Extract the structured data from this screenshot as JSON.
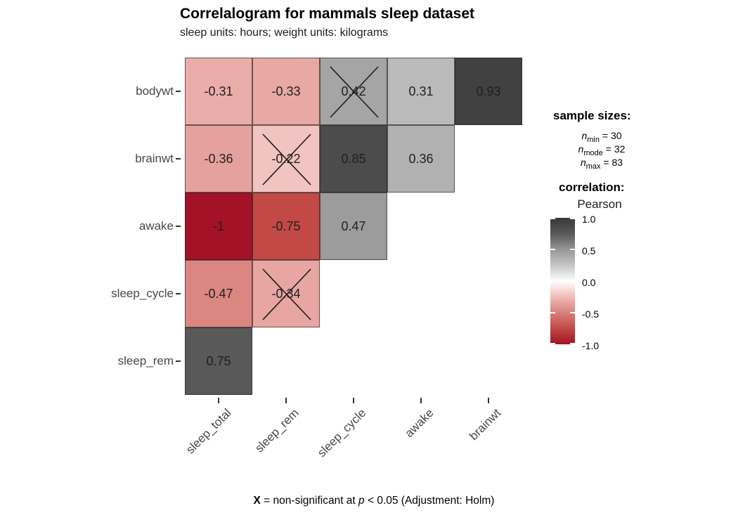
{
  "title": "Correlalogram for mammals sleep dataset",
  "subtitle": "sleep units: hours; weight units: kilograms",
  "caption": {
    "bold": "X",
    "mid": " = non-significant at ",
    "italic": "p",
    "rest": " < 0.05 (Adjustment: Holm)"
  },
  "legend": {
    "sample_sizes_title": "sample sizes:",
    "sample_sizes": [
      {
        "symbol": "n",
        "subscript": "min",
        "value": "30"
      },
      {
        "symbol": "n",
        "subscript": "mode",
        "value": "32"
      },
      {
        "symbol": "n",
        "subscript": "max",
        "value": "83"
      }
    ],
    "correlation_title": "correlation:",
    "correlation_method": "Pearson"
  },
  "chart_data": {
    "type": "heatmap",
    "title": "Correlalogram for mammals sleep dataset",
    "subtitle": "sleep units: hours; weight units: kilograms",
    "x_categories": [
      "sleep_total",
      "sleep_rem",
      "sleep_cycle",
      "awake",
      "brainwt"
    ],
    "y_categories": [
      "bodywt",
      "brainwt",
      "awake",
      "sleep_cycle",
      "sleep_rem"
    ],
    "cells": [
      {
        "row": "bodywt",
        "col": "sleep_total",
        "value": -0.31,
        "label": "-0.31",
        "significant": true
      },
      {
        "row": "bodywt",
        "col": "sleep_rem",
        "value": -0.33,
        "label": "-0.33",
        "significant": true
      },
      {
        "row": "bodywt",
        "col": "sleep_cycle",
        "value": 0.42,
        "label": "0.42",
        "significant": false
      },
      {
        "row": "bodywt",
        "col": "awake",
        "value": 0.31,
        "label": "0.31",
        "significant": true
      },
      {
        "row": "bodywt",
        "col": "brainwt",
        "value": 0.93,
        "label": "0.93",
        "significant": true
      },
      {
        "row": "brainwt",
        "col": "sleep_total",
        "value": -0.36,
        "label": "-0.36",
        "significant": true
      },
      {
        "row": "brainwt",
        "col": "sleep_rem",
        "value": -0.22,
        "label": "-0.22",
        "significant": false
      },
      {
        "row": "brainwt",
        "col": "sleep_cycle",
        "value": 0.85,
        "label": "0.85",
        "significant": true
      },
      {
        "row": "brainwt",
        "col": "awake",
        "value": 0.36,
        "label": "0.36",
        "significant": true
      },
      {
        "row": "awake",
        "col": "sleep_total",
        "value": -1,
        "label": "-1",
        "significant": true
      },
      {
        "row": "awake",
        "col": "sleep_rem",
        "value": -0.75,
        "label": "-0.75",
        "significant": true
      },
      {
        "row": "awake",
        "col": "sleep_cycle",
        "value": 0.47,
        "label": "0.47",
        "significant": true
      },
      {
        "row": "sleep_cycle",
        "col": "sleep_total",
        "value": -0.47,
        "label": "-0.47",
        "significant": true
      },
      {
        "row": "sleep_cycle",
        "col": "sleep_rem",
        "value": -0.34,
        "label": "-0.34",
        "significant": false
      },
      {
        "row": "sleep_rem",
        "col": "sleep_total",
        "value": 0.75,
        "label": "0.75",
        "significant": true
      }
    ],
    "colormap": {
      "positive_stops": [
        [
          0,
          "#ffffff"
        ],
        [
          0.25,
          "#c6c6c6"
        ],
        [
          0.5,
          "#969696"
        ],
        [
          0.75,
          "#595959"
        ],
        [
          1,
          "#383838"
        ]
      ],
      "negative_stops": [
        [
          0,
          "#ffffff"
        ],
        [
          0.25,
          "#f0bcb8"
        ],
        [
          0.5,
          "#d87f7a"
        ],
        [
          0.75,
          "#c24946"
        ],
        [
          1,
          "#a31226"
        ]
      ]
    },
    "colorbar": {
      "range": [
        -1.0,
        1.0
      ],
      "breaks": [
        {
          "value": 1.0,
          "label": "1.0"
        },
        {
          "value": 0.5,
          "label": "0.5"
        },
        {
          "value": 0.0,
          "label": "0.0"
        },
        {
          "value": -0.5,
          "label": "-0.5"
        },
        {
          "value": -1.0,
          "label": "-1.0"
        }
      ]
    },
    "legend_position": "right",
    "grid": false
  }
}
